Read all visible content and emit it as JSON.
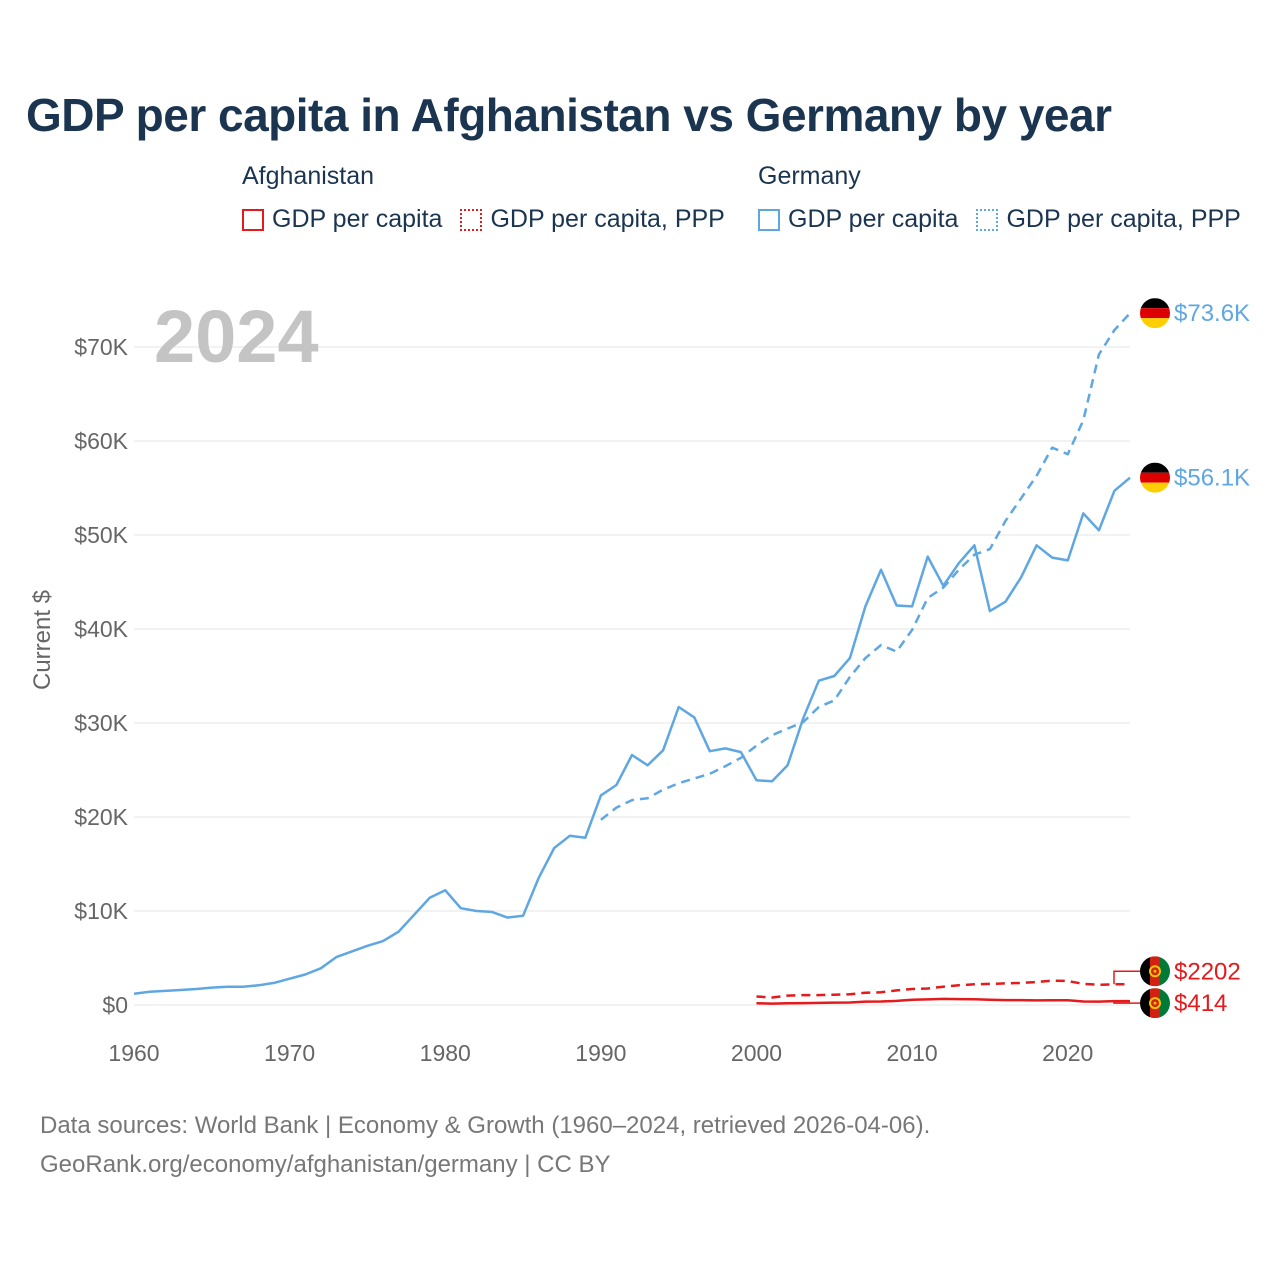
{
  "title": "GDP per capita in Afghanistan vs Germany by year",
  "legend": {
    "afghanistan": {
      "country": "Afghanistan",
      "gdp_label": "GDP per capita",
      "ppp_label": "GDP per capita, PPP"
    },
    "germany": {
      "country": "Germany",
      "gdp_label": "GDP per capita",
      "ppp_label": "GDP per capita, PPP"
    }
  },
  "colors": {
    "afghanistan": "#e41a1c",
    "germany": "#5ea7e3",
    "title": "#1b3550",
    "year_watermark": "#c4c4c4"
  },
  "footer": {
    "line1": "Data sources: World Bank | Economy & Growth (1960–2024, retrieved 2026-04-06).",
    "line2": "GeoRank.org/economy/afghanistan/germany | CC BY"
  },
  "chart_data": {
    "type": "line",
    "year_watermark": "2024",
    "ylabel": "Current $",
    "xlim": [
      1960,
      2024
    ],
    "ylim": [
      0,
      76000
    ],
    "x_ticks": [
      1960,
      1970,
      1980,
      1990,
      2000,
      2010,
      2020
    ],
    "x_tick_labels": [
      "1960",
      "1970",
      "1980",
      "1990",
      "2000",
      "2010",
      "2020"
    ],
    "y_ticks": [
      0,
      10000,
      20000,
      30000,
      40000,
      50000,
      60000,
      70000
    ],
    "y_tick_labels": [
      "$0",
      "$10K",
      "$20K",
      "$30K",
      "$40K",
      "$50K",
      "$60K",
      "$70K"
    ],
    "grid": true,
    "series": [
      {
        "name": "Germany GDP per capita",
        "country": "germany",
        "dash": "solid",
        "end_label": "$56.1K",
        "points": [
          [
            1960,
            1200
          ],
          [
            1961,
            1400
          ],
          [
            1962,
            1500
          ],
          [
            1963,
            1600
          ],
          [
            1964,
            1700
          ],
          [
            1965,
            1850
          ],
          [
            1966,
            1950
          ],
          [
            1967,
            1950
          ],
          [
            1968,
            2100
          ],
          [
            1969,
            2350
          ],
          [
            1970,
            2800
          ],
          [
            1971,
            3250
          ],
          [
            1972,
            3900
          ],
          [
            1973,
            5100
          ],
          [
            1974,
            5700
          ],
          [
            1975,
            6300
          ],
          [
            1976,
            6800
          ],
          [
            1977,
            7800
          ],
          [
            1978,
            9600
          ],
          [
            1979,
            11400
          ],
          [
            1980,
            12200
          ],
          [
            1981,
            10300
          ],
          [
            1982,
            10000
          ],
          [
            1983,
            9900
          ],
          [
            1984,
            9300
          ],
          [
            1985,
            9500
          ],
          [
            1986,
            13500
          ],
          [
            1987,
            16700
          ],
          [
            1988,
            18000
          ],
          [
            1989,
            17800
          ],
          [
            1990,
            22300
          ],
          [
            1991,
            23400
          ],
          [
            1992,
            26600
          ],
          [
            1993,
            25500
          ],
          [
            1994,
            27100
          ],
          [
            1995,
            31700
          ],
          [
            1996,
            30600
          ],
          [
            1997,
            27000
          ],
          [
            1998,
            27300
          ],
          [
            1999,
            26900
          ],
          [
            2000,
            23900
          ],
          [
            2001,
            23800
          ],
          [
            2002,
            25500
          ],
          [
            2003,
            30500
          ],
          [
            2004,
            34500
          ],
          [
            2005,
            35000
          ],
          [
            2006,
            36900
          ],
          [
            2007,
            42400
          ],
          [
            2008,
            46300
          ],
          [
            2009,
            42500
          ],
          [
            2010,
            42400
          ],
          [
            2011,
            47700
          ],
          [
            2012,
            44600
          ],
          [
            2013,
            47000
          ],
          [
            2014,
            48900
          ],
          [
            2015,
            41900
          ],
          [
            2016,
            42900
          ],
          [
            2017,
            45500
          ],
          [
            2018,
            48900
          ],
          [
            2019,
            47600
          ],
          [
            2020,
            47300
          ],
          [
            2021,
            52300
          ],
          [
            2022,
            50500
          ],
          [
            2023,
            54700
          ],
          [
            2024,
            56100
          ]
        ]
      },
      {
        "name": "Germany GDP per capita, PPP",
        "country": "germany",
        "dash": "dashed",
        "end_label": "$73.6K",
        "points": [
          [
            1990,
            19700
          ],
          [
            1991,
            21000
          ],
          [
            1992,
            21800
          ],
          [
            1993,
            22000
          ],
          [
            1994,
            22900
          ],
          [
            1995,
            23600
          ],
          [
            1996,
            24100
          ],
          [
            1997,
            24600
          ],
          [
            1998,
            25400
          ],
          [
            1999,
            26300
          ],
          [
            2000,
            27600
          ],
          [
            2001,
            28700
          ],
          [
            2002,
            29400
          ],
          [
            2003,
            30100
          ],
          [
            2004,
            31700
          ],
          [
            2005,
            32400
          ],
          [
            2006,
            34900
          ],
          [
            2007,
            36900
          ],
          [
            2008,
            38300
          ],
          [
            2009,
            37600
          ],
          [
            2010,
            39900
          ],
          [
            2011,
            43300
          ],
          [
            2012,
            44400
          ],
          [
            2013,
            46300
          ],
          [
            2014,
            47900
          ],
          [
            2015,
            48500
          ],
          [
            2016,
            51500
          ],
          [
            2017,
            53900
          ],
          [
            2018,
            56300
          ],
          [
            2019,
            59300
          ],
          [
            2020,
            58600
          ],
          [
            2021,
            62200
          ],
          [
            2022,
            69200
          ],
          [
            2023,
            71800
          ],
          [
            2024,
            73600
          ]
        ]
      },
      {
        "name": "Afghanistan GDP per capita",
        "country": "afghanistan",
        "dash": "solid",
        "end_label": "$414",
        "points": [
          [
            2000,
            180
          ],
          [
            2001,
            150
          ],
          [
            2002,
            180
          ],
          [
            2003,
            200
          ],
          [
            2004,
            220
          ],
          [
            2005,
            250
          ],
          [
            2006,
            270
          ],
          [
            2007,
            360
          ],
          [
            2008,
            370
          ],
          [
            2009,
            440
          ],
          [
            2010,
            550
          ],
          [
            2011,
            600
          ],
          [
            2012,
            650
          ],
          [
            2013,
            630
          ],
          [
            2014,
            610
          ],
          [
            2015,
            560
          ],
          [
            2016,
            520
          ],
          [
            2017,
            520
          ],
          [
            2018,
            490
          ],
          [
            2019,
            500
          ],
          [
            2020,
            510
          ],
          [
            2021,
            370
          ],
          [
            2022,
            360
          ],
          [
            2023,
            410
          ],
          [
            2024,
            414
          ]
        ]
      },
      {
        "name": "Afghanistan GDP per capita, PPP",
        "country": "afghanistan",
        "dash": "dashed",
        "end_label": "$2202",
        "points": [
          [
            2000,
            900
          ],
          [
            2001,
            800
          ],
          [
            2002,
            1000
          ],
          [
            2003,
            1050
          ],
          [
            2004,
            1050
          ],
          [
            2005,
            1100
          ],
          [
            2006,
            1150
          ],
          [
            2007,
            1300
          ],
          [
            2008,
            1350
          ],
          [
            2009,
            1550
          ],
          [
            2010,
            1700
          ],
          [
            2011,
            1750
          ],
          [
            2012,
            1950
          ],
          [
            2013,
            2100
          ],
          [
            2014,
            2200
          ],
          [
            2015,
            2250
          ],
          [
            2016,
            2300
          ],
          [
            2017,
            2350
          ],
          [
            2018,
            2450
          ],
          [
            2019,
            2600
          ],
          [
            2020,
            2550
          ],
          [
            2021,
            2250
          ],
          [
            2022,
            2150
          ],
          [
            2023,
            2200
          ],
          [
            2024,
            2202
          ]
        ]
      }
    ]
  }
}
